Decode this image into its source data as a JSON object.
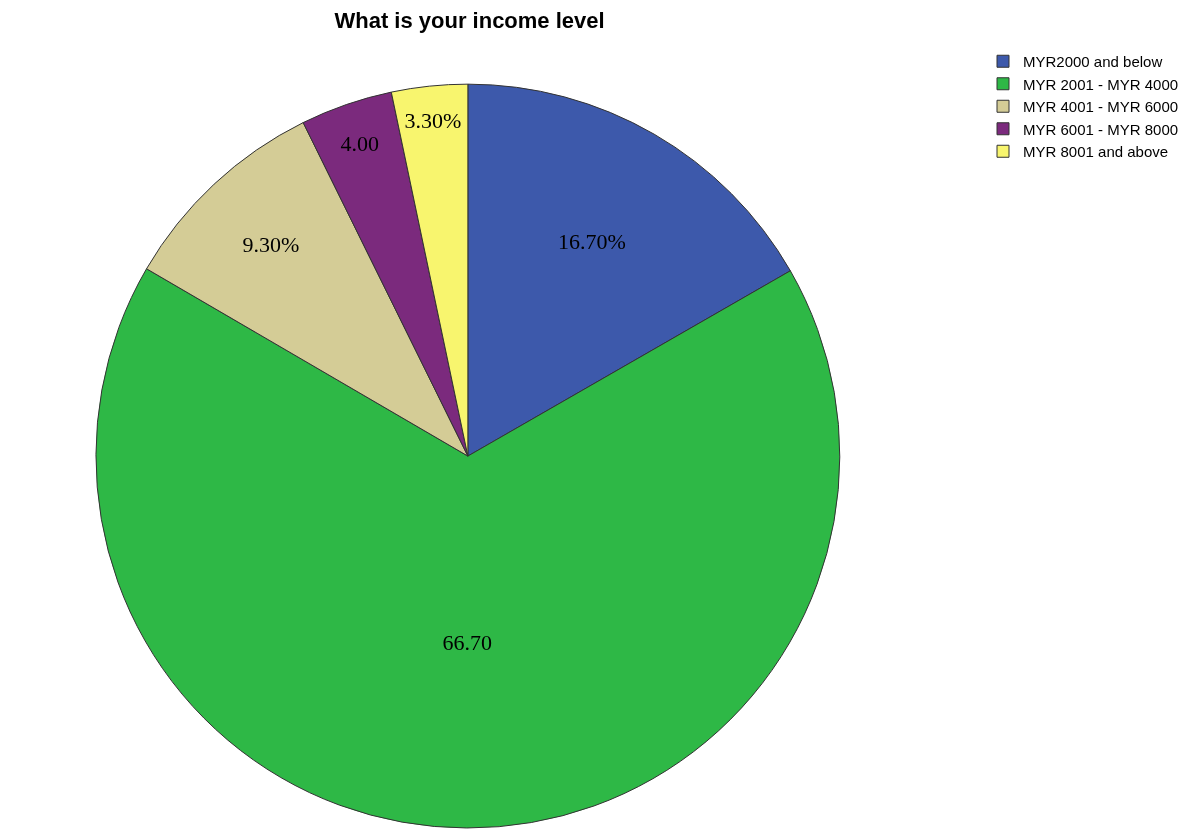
{
  "chart_data": {
    "type": "pie",
    "title": "What is your income level",
    "categories": [
      "MYR2000 and below",
      "MYR 2001 - MYR 4000",
      "MYR 4001 - MYR 6000",
      "MYR 6001 - MYR 8000",
      "MYR 8001 and above"
    ],
    "values": [
      16.7,
      66.7,
      9.3,
      4.0,
      3.3
    ],
    "value_labels": [
      "16.70%",
      "66.70",
      "9.30%",
      "4.00",
      "3.30%"
    ],
    "colors": [
      "#3d59ab",
      "#2eb846",
      "#d4cc96",
      "#7b2a7d",
      "#f8f56e"
    ],
    "legend": "top right"
  }
}
